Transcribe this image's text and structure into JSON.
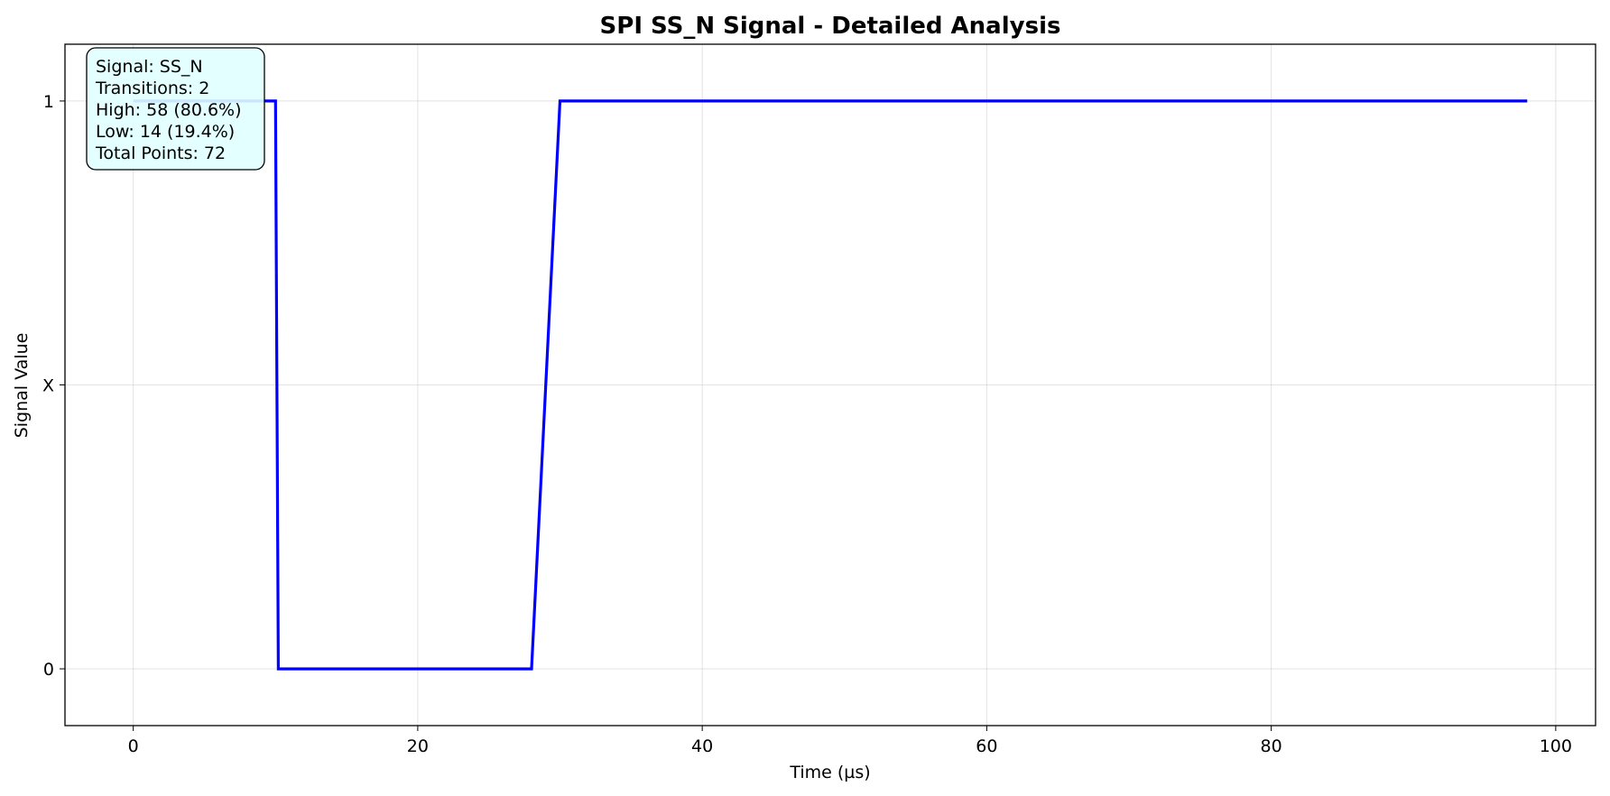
{
  "chart_data": {
    "type": "line",
    "title": "SPI SS_N Signal - Detailed Analysis",
    "xlabel": "Time (µs)",
    "ylabel": "Signal Value",
    "xlim": [
      -4.8,
      102.8
    ],
    "ylim": [
      -0.1,
      1.1
    ],
    "x_ticks": [
      0,
      20,
      40,
      60,
      80,
      100
    ],
    "y_ticks": [
      {
        "value": 0,
        "label": "0"
      },
      {
        "value": 0.5,
        "label": "X"
      },
      {
        "value": 1,
        "label": "1"
      }
    ],
    "grid": true,
    "series": [
      {
        "color": "#0000ff",
        "x": [
          0,
          10,
          10.2,
          28,
          30,
          98
        ],
        "y": [
          1,
          1,
          0,
          0,
          1,
          1
        ]
      }
    ],
    "stats_box": {
      "position": "top-left",
      "background": "#e0ffff",
      "lines": [
        "Signal: SS_N",
        "Transitions: 2",
        "High: 58 (80.6%)",
        "Low: 14 (19.4%)",
        "Total Points: 72"
      ]
    }
  }
}
